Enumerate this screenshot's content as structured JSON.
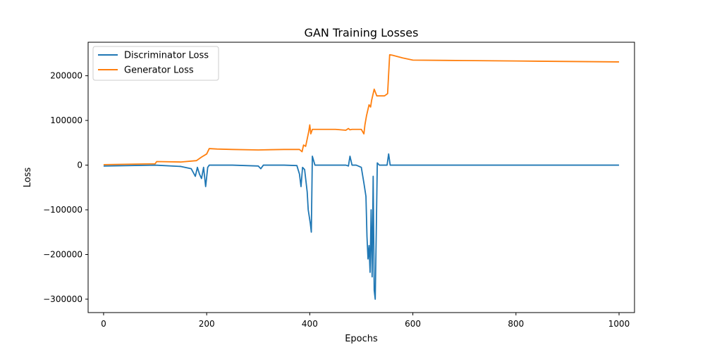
{
  "chart_data": {
    "type": "line",
    "title": "GAN Training Losses",
    "xlabel": "Epochs",
    "ylabel": "Loss",
    "xlim": [
      -30,
      1030
    ],
    "ylim": [
      -330000,
      275000
    ],
    "xticks": [
      0,
      200,
      400,
      600,
      800,
      1000
    ],
    "yticks": [
      -300000,
      -200000,
      -100000,
      0,
      100000,
      200000
    ],
    "xtick_labels": [
      "0",
      "200",
      "400",
      "600",
      "800",
      "1000"
    ],
    "ytick_labels": [
      "−300000",
      "−200000",
      "−100000",
      "0",
      "100000",
      "200000"
    ],
    "grid": false,
    "legend_position": "top-left",
    "series": [
      {
        "name": "Discriminator Loss",
        "color": "#1f77b4",
        "x": [
          0,
          50,
          100,
          150,
          170,
          178,
          182,
          186,
          190,
          194,
          198,
          202,
          205,
          210,
          250,
          300,
          305,
          310,
          350,
          375,
          380,
          383,
          386,
          390,
          395,
          397,
          399,
          401,
          403,
          405,
          410,
          450,
          470,
          475,
          478,
          482,
          490,
          500,
          505,
          509,
          511,
          513,
          515,
          517,
          519,
          521,
          523,
          525,
          527,
          529,
          531,
          535,
          545,
          550,
          553,
          556,
          600,
          700,
          800,
          900,
          1000
        ],
        "y": [
          -2000,
          -1000,
          0,
          -3000,
          -8000,
          -25000,
          -5000,
          -20000,
          -30000,
          -5000,
          -48000,
          -5000,
          0,
          0,
          0,
          -2000,
          -8000,
          0,
          0,
          -1000,
          -20000,
          -48000,
          -5000,
          -10000,
          -60000,
          -100000,
          -115000,
          -130000,
          -150000,
          20000,
          0,
          0,
          0,
          -2000,
          20000,
          0,
          0,
          -5000,
          -40000,
          -70000,
          -160000,
          -210000,
          -180000,
          -240000,
          -100000,
          -250000,
          -25000,
          -280000,
          -300000,
          -150000,
          5000,
          0,
          0,
          0,
          25000,
          0,
          0,
          0,
          0,
          0,
          0
        ]
      },
      {
        "name": "Generator Loss",
        "color": "#ff7f0e",
        "x": [
          0,
          50,
          100,
          103,
          150,
          180,
          190,
          200,
          205,
          220,
          250,
          300,
          350,
          380,
          385,
          388,
          392,
          398,
          400,
          402,
          405,
          450,
          470,
          475,
          478,
          482,
          490,
          500,
          505,
          507,
          510,
          515,
          518,
          520,
          523,
          525,
          530,
          545,
          551,
          555,
          560,
          580,
          600,
          700,
          800,
          900,
          1000
        ],
        "y": [
          1000,
          2000,
          3000,
          8000,
          7000,
          10000,
          18000,
          25000,
          37000,
          36000,
          35000,
          34000,
          35000,
          35000,
          30000,
          45000,
          42000,
          75000,
          90000,
          70000,
          80000,
          80000,
          78000,
          82000,
          79000,
          80000,
          80000,
          80000,
          70000,
          90000,
          110000,
          135000,
          130000,
          145000,
          160000,
          170000,
          155000,
          155000,
          160000,
          247000,
          246000,
          240000,
          235000,
          234000,
          233000,
          232000,
          231000
        ]
      }
    ]
  }
}
